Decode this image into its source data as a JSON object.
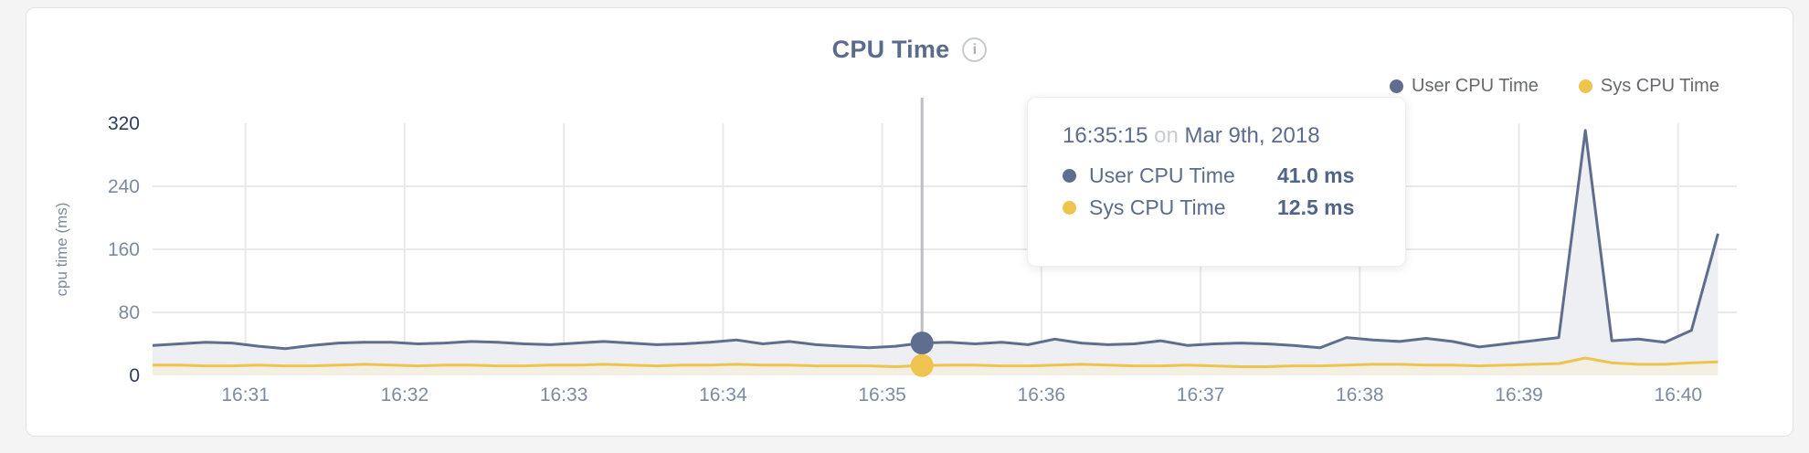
{
  "card": {
    "title": "CPU Time",
    "info_icon": "i"
  },
  "legend": [
    {
      "label": "User CPU Time",
      "color": "#5f6e8e"
    },
    {
      "label": "Sys CPU Time",
      "color": "#eec44f"
    }
  ],
  "tooltip": {
    "time": "16:35:15",
    "conjunction": "on",
    "date": "Mar 9th, 2018",
    "rows": [
      {
        "label": "User CPU Time",
        "value": "41.0 ms",
        "color": "#5f6e8e"
      },
      {
        "label": "Sys CPU Time",
        "value": "12.5 ms",
        "color": "#eec44f"
      }
    ]
  },
  "chart_data": {
    "type": "line",
    "title": "CPU Time",
    "xlabel": "",
    "ylabel": "cpu time (ms)",
    "ylim": [
      0,
      320
    ],
    "y_ticks": [
      0,
      80,
      160,
      240,
      320
    ],
    "x_ticks": [
      "16:31",
      "16:32",
      "16:33",
      "16:34",
      "16:35",
      "16:36",
      "16:37",
      "16:38",
      "16:39",
      "16:40"
    ],
    "grid": true,
    "legend_position": "top-right",
    "x": [
      "16:30:25",
      "16:30:35",
      "16:30:45",
      "16:30:55",
      "16:31:05",
      "16:31:15",
      "16:31:25",
      "16:31:35",
      "16:31:45",
      "16:31:55",
      "16:32:05",
      "16:32:15",
      "16:32:25",
      "16:32:35",
      "16:32:45",
      "16:32:55",
      "16:33:05",
      "16:33:15",
      "16:33:25",
      "16:33:35",
      "16:33:45",
      "16:33:55",
      "16:34:05",
      "16:34:15",
      "16:34:25",
      "16:34:35",
      "16:34:45",
      "16:34:55",
      "16:35:05",
      "16:35:15",
      "16:35:25",
      "16:35:35",
      "16:35:45",
      "16:35:55",
      "16:36:05",
      "16:36:15",
      "16:36:25",
      "16:36:35",
      "16:36:45",
      "16:36:55",
      "16:37:05",
      "16:37:15",
      "16:37:25",
      "16:37:35",
      "16:37:45",
      "16:37:55",
      "16:38:05",
      "16:38:15",
      "16:38:25",
      "16:38:35",
      "16:38:45",
      "16:38:55",
      "16:39:05",
      "16:39:15",
      "16:39:25",
      "16:39:35",
      "16:39:45",
      "16:39:55",
      "16:40:05",
      "16:40:15"
    ],
    "series": [
      {
        "name": "User CPU Time",
        "color": "#5f6e8e",
        "fill": "#edeff3",
        "values": [
          38,
          40,
          42,
          41,
          37,
          34,
          38,
          41,
          42,
          42,
          40,
          41,
          43,
          42,
          40,
          39,
          41,
          43,
          41,
          39,
          40,
          42,
          45,
          40,
          43,
          39,
          37,
          35,
          37,
          41,
          42,
          40,
          42,
          39,
          46,
          41,
          39,
          40,
          44,
          38,
          40,
          41,
          40,
          38,
          35,
          48,
          45,
          43,
          47,
          43,
          36,
          40,
          44,
          48,
          311,
          44,
          46,
          42,
          57,
          180
        ]
      },
      {
        "name": "Sys CPU Time",
        "color": "#eec44f",
        "fill": "#f3f0e3",
        "values": [
          13,
          13,
          12,
          12,
          13,
          12,
          12,
          13,
          14,
          13,
          12,
          13,
          13,
          12,
          12,
          13,
          13,
          14,
          13,
          12,
          13,
          13,
          14,
          13,
          13,
          12,
          12,
          12,
          11,
          12.5,
          13,
          13,
          12,
          12,
          13,
          14,
          13,
          12,
          12,
          13,
          12,
          11,
          11,
          12,
          12,
          13,
          14,
          14,
          13,
          13,
          12,
          13,
          14,
          15,
          22,
          16,
          14,
          14,
          16,
          17
        ]
      }
    ],
    "hover": {
      "index": 29,
      "time": "16:35:15",
      "values": [
        41.0,
        12.5
      ]
    },
    "colors": {
      "grid": "#e9e9eb",
      "hover_line": "#bcbec3",
      "tick": "#7d8b9f",
      "tick_dark": "#2e3d5b"
    }
  }
}
